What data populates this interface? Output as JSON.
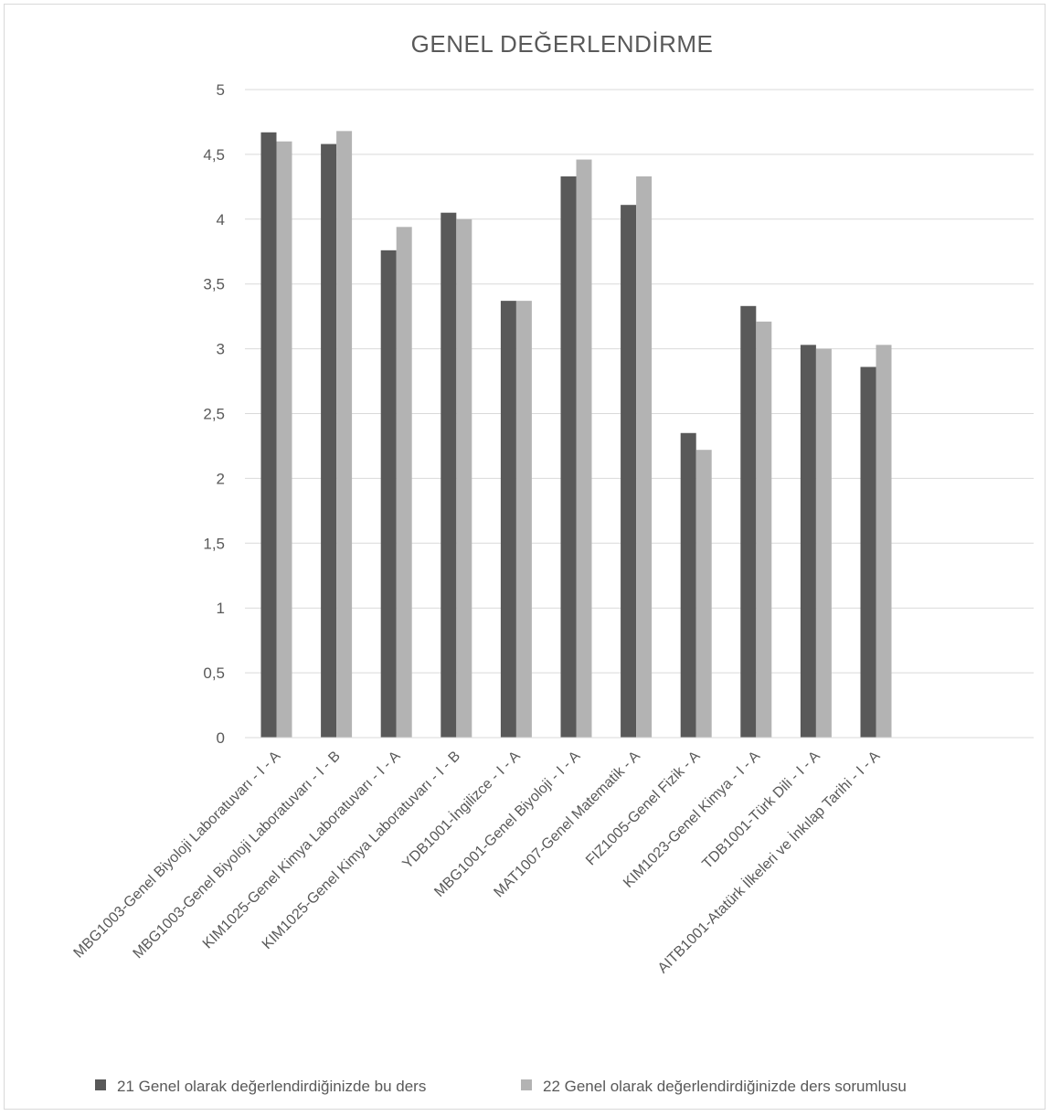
{
  "chart_data": {
    "type": "bar",
    "title": "GENEL DEĞERLENDİRME",
    "xlabel": "",
    "ylabel": "",
    "ylim": [
      0,
      5
    ],
    "yticks": [
      "0",
      "0,5",
      "1",
      "1,5",
      "2",
      "2,5",
      "3",
      "3,5",
      "4",
      "4,5",
      "5"
    ],
    "categories": [
      "MBG1003-Genel Biyoloji Laboratuvarı - I - A",
      "MBG1003-Genel Biyoloji Laboratuvarı - I - B",
      "KIM1025-Genel Kimya Laboratuvarı - I - A",
      "KIM1025-Genel Kimya Laboratuvarı - I - B",
      "YDB1001-İngilizce - I - A",
      "MBG1001-Genel Biyoloji - I - A",
      "MAT1007-Genel Matematik - A",
      "FIZ1005-Genel Fizik - A",
      "KIM1023-Genel Kimya - I - A",
      "TDB1001-Türk Dili - I - A",
      "AITB1001-Atatürk İlkeleri ve İnkılap Tarihi - I - A"
    ],
    "series": [
      {
        "name": "21 Genel olarak değerlendirdiğinizde bu ders",
        "color": "#595959",
        "values": [
          4.67,
          4.58,
          3.76,
          4.05,
          3.37,
          4.33,
          4.11,
          2.35,
          3.33,
          3.03,
          2.86
        ]
      },
      {
        "name": "22 Genel olarak değerlendirdiğinizde ders sorumlusu",
        "color": "#b3b3b3",
        "values": [
          4.6,
          4.68,
          3.94,
          4.0,
          3.37,
          4.46,
          4.33,
          2.22,
          3.21,
          3.0,
          3.03
        ]
      }
    ],
    "grid": true,
    "legend_position": "bottom"
  }
}
